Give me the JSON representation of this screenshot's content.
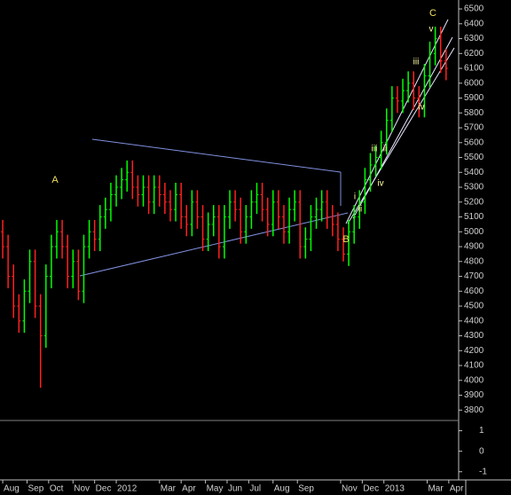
{
  "chart_data": {
    "type": "ohlc",
    "up_color": "#00ff00",
    "down_color": "#ff2020",
    "x": [
      0,
      1,
      2,
      3,
      4,
      5,
      6,
      7,
      8,
      9,
      10,
      11,
      12,
      13,
      14,
      15,
      16,
      17,
      18,
      19,
      20,
      21,
      22,
      23,
      24,
      25,
      26,
      27,
      28,
      29,
      30,
      31,
      32,
      33,
      34,
      35,
      36,
      37,
      38,
      39,
      40,
      41,
      42,
      43,
      44,
      45,
      46,
      47,
      48,
      49,
      50,
      51,
      52,
      53,
      54,
      55,
      56,
      57,
      58,
      59,
      60,
      61,
      62,
      63,
      64,
      65,
      66,
      67,
      68,
      69,
      70,
      71,
      72,
      73,
      74,
      75,
      76,
      77,
      78,
      79,
      80,
      81,
      82
    ],
    "open": [
      5000,
      4900,
      4700,
      4500,
      4400,
      4600,
      4800,
      4500,
      4300,
      4700,
      4900,
      5000,
      4900,
      4700,
      4800,
      4600,
      4900,
      5000,
      4950,
      5100,
      5150,
      5250,
      5300,
      5350,
      5400,
      5300,
      5250,
      5300,
      5200,
      5300,
      5250,
      5200,
      5150,
      5250,
      5100,
      5050,
      5200,
      5100,
      4950,
      5050,
      5100,
      4900,
      5100,
      5200,
      5150,
      5000,
      5100,
      5200,
      5250,
      5150,
      5050,
      5200,
      5100,
      5000,
      5150,
      5200,
      4900,
      4950,
      5100,
      5150,
      5200,
      5100,
      5050,
      4950,
      4850,
      5000,
      5100,
      5200,
      5350,
      5450,
      5500,
      5600,
      5750,
      5900,
      5880,
      5950,
      6000,
      5900,
      5850,
      6050,
      6200,
      6300,
      6150
    ],
    "high": [
      5080,
      4980,
      4780,
      4580,
      4680,
      4880,
      4880,
      4580,
      4780,
      4980,
      5080,
      5080,
      4980,
      4880,
      4880,
      4980,
      5080,
      5080,
      5180,
      5230,
      5330,
      5380,
      5430,
      5480,
      5480,
      5380,
      5380,
      5380,
      5380,
      5380,
      5330,
      5280,
      5330,
      5330,
      5180,
      5280,
      5280,
      5180,
      5130,
      5180,
      5180,
      5180,
      5280,
      5280,
      5230,
      5180,
      5280,
      5330,
      5330,
      5230,
      5280,
      5280,
      5180,
      5230,
      5280,
      5280,
      5030,
      5180,
      5230,
      5280,
      5280,
      5180,
      5130,
      5030,
      5080,
      5180,
      5280,
      5430,
      5530,
      5580,
      5680,
      5830,
      5980,
      5980,
      6030,
      6080,
      6080,
      5980,
      6130,
      6280,
      6380,
      6380,
      6230
    ],
    "low": [
      4820,
      4620,
      4420,
      4320,
      4320,
      4520,
      4420,
      3950,
      4220,
      4620,
      4820,
      4820,
      4620,
      4620,
      4540,
      4520,
      4820,
      4870,
      4870,
      5020,
      5070,
      5170,
      5220,
      5270,
      5220,
      5170,
      5170,
      5120,
      5120,
      5170,
      5120,
      5070,
      5070,
      5020,
      4970,
      4970,
      5020,
      4870,
      4870,
      4970,
      4820,
      4820,
      5020,
      5070,
      4920,
      4920,
      5020,
      5120,
      5070,
      4970,
      4970,
      5020,
      4920,
      4920,
      5070,
      4820,
      4820,
      4870,
      5020,
      5070,
      5020,
      4970,
      4870,
      4800,
      4770,
      4920,
      5020,
      5120,
      5270,
      5370,
      5420,
      5520,
      5670,
      5800,
      5800,
      5870,
      5820,
      5770,
      5770,
      5970,
      6120,
      6070,
      6020
    ],
    "close": [
      4900,
      4700,
      4500,
      4400,
      4600,
      4800,
      4500,
      4300,
      4700,
      4900,
      5000,
      4900,
      4700,
      4800,
      4600,
      4900,
      5000,
      4950,
      5100,
      5150,
      5250,
      5300,
      5350,
      5400,
      5300,
      5250,
      5300,
      5200,
      5300,
      5250,
      5200,
      5150,
      5250,
      5100,
      5050,
      5200,
      5100,
      4950,
      5050,
      5100,
      4900,
      5100,
      5200,
      5150,
      5000,
      5100,
      5200,
      5250,
      5150,
      5050,
      5200,
      5100,
      5000,
      5150,
      5200,
      4900,
      4950,
      5100,
      5150,
      5200,
      5100,
      5050,
      4950,
      4850,
      5000,
      5100,
      5200,
      5350,
      5450,
      5500,
      5600,
      5750,
      5900,
      5880,
      5950,
      6000,
      5900,
      5850,
      6050,
      6200,
      6300,
      6150,
      6100
    ],
    "xlim": [
      -0.5,
      84
    ],
    "xticks": [
      {
        "value": 0,
        "label": "Aug"
      },
      {
        "value": 4.5,
        "label": "Sep"
      },
      {
        "value": 8.5,
        "label": "Oct"
      },
      {
        "value": 13,
        "label": "Nov"
      },
      {
        "value": 17,
        "label": "Dec"
      },
      {
        "value": 21,
        "label": "2012"
      },
      {
        "value": 29,
        "label": "Mar"
      },
      {
        "value": 33,
        "label": "Apr"
      },
      {
        "value": 37.5,
        "label": "May"
      },
      {
        "value": 41.5,
        "label": "Jun"
      },
      {
        "value": 45.5,
        "label": "Jul"
      },
      {
        "value": 50,
        "label": "Aug"
      },
      {
        "value": 54.5,
        "label": "Sep"
      },
      {
        "value": 62.5,
        "label": "Nov"
      },
      {
        "value": 66.5,
        "label": "Dec"
      },
      {
        "value": 70.5,
        "label": "2013"
      },
      {
        "value": 78.5,
        "label": "Mar"
      },
      {
        "value": 82.5,
        "label": "Apr"
      }
    ],
    "ylim": [
      3730,
      6560
    ],
    "yticks": [
      3800,
      3900,
      4000,
      4100,
      4200,
      4300,
      4400,
      4500,
      4600,
      4700,
      4800,
      4900,
      5000,
      5100,
      5200,
      5300,
      5400,
      5500,
      5600,
      5700,
      5800,
      5900,
      6000,
      6100,
      6200,
      6300,
      6400,
      6500
    ],
    "indicator_ylim": [
      -1.4,
      1.5
    ],
    "indicator_yticks": [
      1,
      0,
      -1
    ],
    "annotations": [
      "A",
      "B",
      "C",
      "i",
      "ii",
      "iii",
      "ii",
      "iv",
      "iii",
      "iv",
      "v"
    ]
  }
}
